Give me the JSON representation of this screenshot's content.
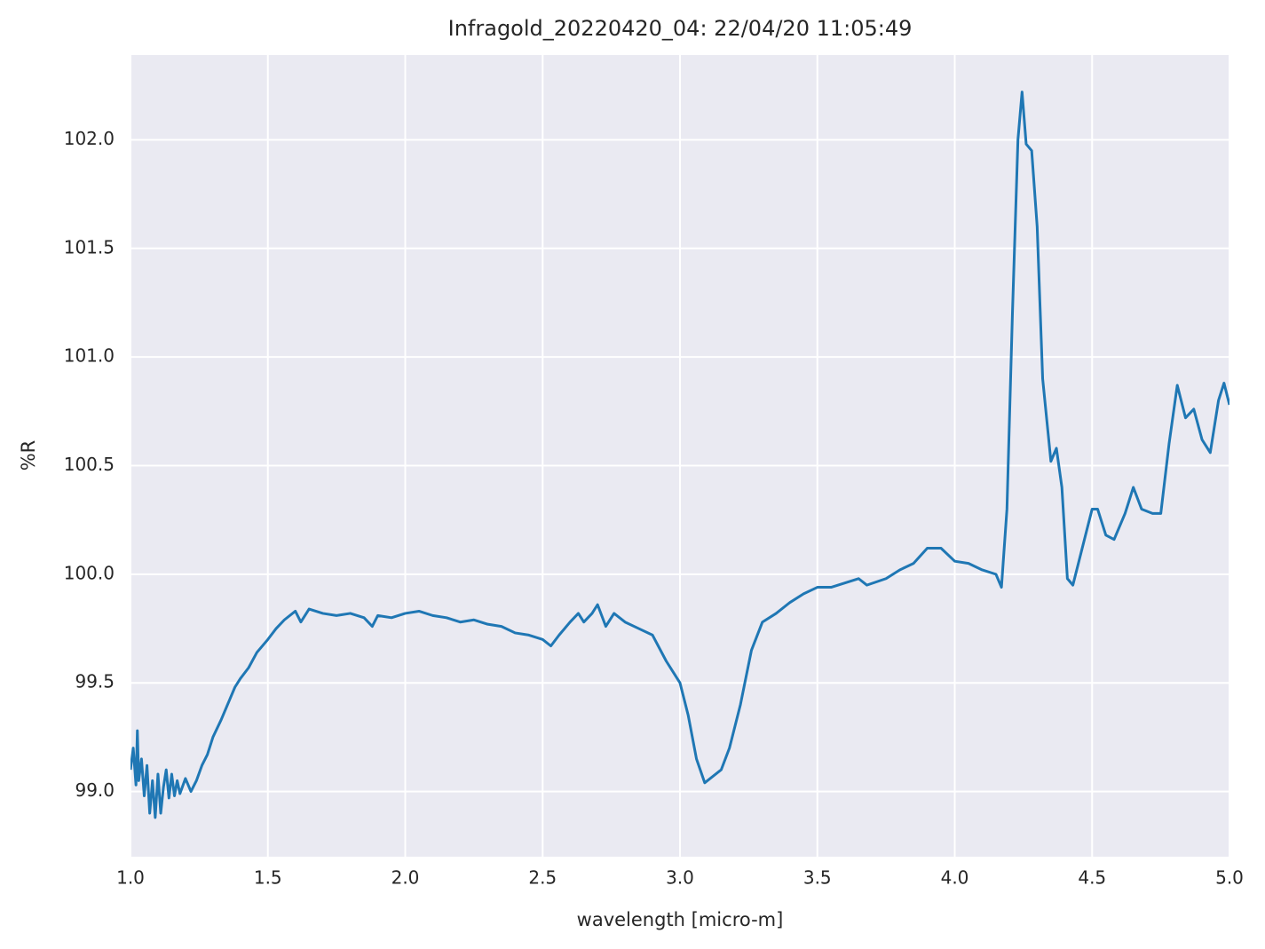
{
  "chart_data": {
    "type": "line",
    "title": "Infragold_20220420_04:  22/04/20 11:05:49",
    "x_label": "wavelength [micro-m]",
    "y_label": "%R",
    "color": "#1f77b4",
    "background": "#eaeaf2",
    "grid": true,
    "xlim": [
      1.0,
      5.0
    ],
    "ylim": [
      98.7,
      102.39
    ],
    "xticks": [
      {
        "value": 1,
        "label": "1.0"
      },
      1.5,
      {
        "value": 2,
        "label": "2.0"
      },
      2.5,
      {
        "value": 3,
        "label": "3.0"
      },
      3.5,
      {
        "value": 4,
        "label": "4.0"
      },
      4.5,
      {
        "value": 5,
        "label": "5.0"
      }
    ],
    "yticks": [
      {
        "value": 99,
        "label": "99.0"
      },
      99.5,
      {
        "value": 100,
        "label": "100.0"
      },
      100.5,
      {
        "value": 101,
        "label": "101.0"
      },
      101.5,
      {
        "value": 102,
        "label": "102.0"
      }
    ],
    "x": [
      1.0,
      1.01,
      1.02,
      1.025,
      1.03,
      1.04,
      1.05,
      1.06,
      1.07,
      1.08,
      1.09,
      1.1,
      1.11,
      1.12,
      1.13,
      1.14,
      1.15,
      1.16,
      1.17,
      1.18,
      1.2,
      1.22,
      1.24,
      1.26,
      1.28,
      1.3,
      1.33,
      1.36,
      1.38,
      1.4,
      1.43,
      1.46,
      1.5,
      1.53,
      1.56,
      1.6,
      1.62,
      1.65,
      1.7,
      1.75,
      1.8,
      1.85,
      1.88,
      1.9,
      1.95,
      2.0,
      2.05,
      2.1,
      2.15,
      2.2,
      2.25,
      2.3,
      2.35,
      2.4,
      2.45,
      2.5,
      2.53,
      2.56,
      2.6,
      2.63,
      2.65,
      2.68,
      2.7,
      2.73,
      2.76,
      2.8,
      2.85,
      2.9,
      2.95,
      3.0,
      3.03,
      3.06,
      3.09,
      3.12,
      3.15,
      3.18,
      3.22,
      3.26,
      3.3,
      3.35,
      3.4,
      3.45,
      3.5,
      3.55,
      3.6,
      3.65,
      3.68,
      3.75,
      3.8,
      3.85,
      3.9,
      3.95,
      4.0,
      4.05,
      4.1,
      4.15,
      4.17,
      4.19,
      4.21,
      4.23,
      4.245,
      4.26,
      4.28,
      4.3,
      4.32,
      4.35,
      4.37,
      4.39,
      4.41,
      4.43,
      4.46,
      4.48,
      4.5,
      4.52,
      4.55,
      4.58,
      4.62,
      4.65,
      4.68,
      4.72,
      4.75,
      4.78,
      4.81,
      4.84,
      4.87,
      4.9,
      4.93,
      4.96,
      4.98,
      5.0
    ],
    "values": [
      99.1,
      99.2,
      99.03,
      99.28,
      99.05,
      99.15,
      98.98,
      99.12,
      98.9,
      99.05,
      98.88,
      99.08,
      98.9,
      99.02,
      99.1,
      98.97,
      99.08,
      98.98,
      99.05,
      98.99,
      99.06,
      99.0,
      99.05,
      99.12,
      99.17,
      99.25,
      99.33,
      99.42,
      99.48,
      99.52,
      99.57,
      99.64,
      99.7,
      99.75,
      99.79,
      99.83,
      99.78,
      99.84,
      99.82,
      99.81,
      99.82,
      99.8,
      99.76,
      99.81,
      99.8,
      99.82,
      99.83,
      99.81,
      99.8,
      99.78,
      99.79,
      99.77,
      99.76,
      99.73,
      99.72,
      99.7,
      99.67,
      99.72,
      99.78,
      99.82,
      99.78,
      99.82,
      99.86,
      99.76,
      99.82,
      99.78,
      99.75,
      99.72,
      99.6,
      99.5,
      99.35,
      99.15,
      99.04,
      99.07,
      99.1,
      99.2,
      99.4,
      99.65,
      99.78,
      99.82,
      99.87,
      99.91,
      99.94,
      99.94,
      99.96,
      99.98,
      99.95,
      99.98,
      100.02,
      100.05,
      100.12,
      100.12,
      100.06,
      100.05,
      100.02,
      100.0,
      99.94,
      100.3,
      101.2,
      102.0,
      102.22,
      101.98,
      101.95,
      101.6,
      100.9,
      100.52,
      100.58,
      100.4,
      99.98,
      99.95,
      100.1,
      100.2,
      100.3,
      100.3,
      100.18,
      100.16,
      100.28,
      100.4,
      100.3,
      100.28,
      100.28,
      100.6,
      100.87,
      100.72,
      100.76,
      100.62,
      100.56,
      100.8,
      100.88,
      100.78
    ]
  }
}
